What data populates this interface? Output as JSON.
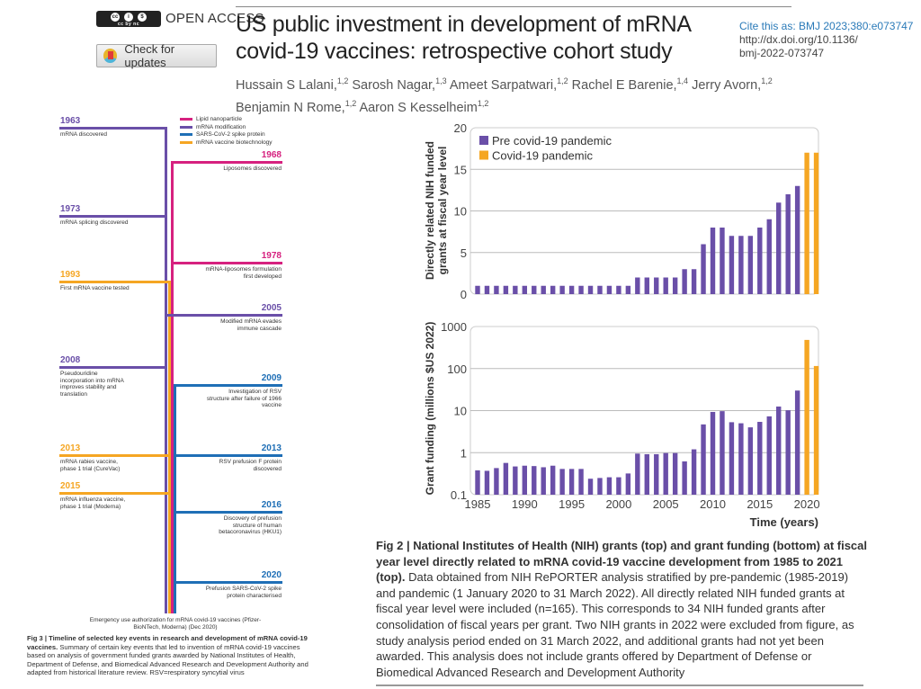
{
  "header": {
    "license_badge": "cc by nc",
    "open_access": "OPEN ACCESS",
    "check_updates": "Check for updates",
    "title": "US public investment in development of mRNA covid-19 vaccines: retrospective cohort study",
    "cite_label": "Cite this as: BMJ 2023;380:e073747",
    "doi_line1": "http://dx.doi.org/10.1136/",
    "doi_line2": "bmj-2022-073747",
    "authors": [
      {
        "name": "Hussain S Lalani,",
        "aff": "1,2"
      },
      {
        "name": "Sarosh Nagar,",
        "aff": "1,3"
      },
      {
        "name": "Ameet Sarpatwari,",
        "aff": "1,2"
      },
      {
        "name": "Rachel E Barenie,",
        "aff": "1,4"
      },
      {
        "name": "Jerry Avorn,",
        "aff": "1,2"
      },
      {
        "name": "Benjamin N Rome,",
        "aff": "1,2"
      },
      {
        "name": "Aaron S Kesselheim",
        "aff": "1,2"
      }
    ]
  },
  "timeline": {
    "colors": {
      "lipid": "#d6217f",
      "mrna": "#6a4fa8",
      "spike": "#1f6fb6",
      "vaccine": "#f5a623"
    },
    "legend": [
      {
        "key": "lipid",
        "label": "Lipid nanoparticle"
      },
      {
        "key": "mrna",
        "label": "mRNA modification"
      },
      {
        "key": "spike",
        "label": "SARS-CoV-2 spike protein"
      },
      {
        "key": "vaccine",
        "label": "mRNA vaccine biotechnology"
      }
    ],
    "events": [
      {
        "year": "1963",
        "side": "left",
        "key": "mrna",
        "text": "mRNA discovered"
      },
      {
        "year": "1968",
        "side": "right",
        "key": "lipid",
        "text": "Liposomes discovered"
      },
      {
        "year": "1973",
        "side": "left",
        "key": "mrna",
        "text": "mRNA splicing discovered"
      },
      {
        "year": "1978",
        "side": "right",
        "key": "lipid",
        "text": "mRNA-liposomes formulation first developed"
      },
      {
        "year": "1993",
        "side": "left",
        "key": "vaccine",
        "text": "First mRNA vaccine tested"
      },
      {
        "year": "2005",
        "side": "right",
        "key": "mrna",
        "text": "Modified mRNA evades immune cascade"
      },
      {
        "year": "2008",
        "side": "left",
        "key": "mrna",
        "text": "Pseudouridine incorporation into mRNA improves stability and translation"
      },
      {
        "year": "2009",
        "side": "right",
        "key": "spike",
        "text": "Investigation of RSV structure after failure of 1966 vaccine"
      },
      {
        "year": "2013",
        "side": "left",
        "key": "vaccine",
        "text": "mRNA rabies vaccine, phase 1 trial (CureVac)"
      },
      {
        "year": "2013",
        "side": "right",
        "key": "spike",
        "text": "RSV prefusion F protein discovered"
      },
      {
        "year": "2015",
        "side": "left",
        "key": "vaccine",
        "text": "mRNA influenza vaccine, phase 1 trial (Moderna)"
      },
      {
        "year": "2016",
        "side": "right",
        "key": "spike",
        "text": "Discovery of prefusion structure of human betacoronavirus (HKU1)"
      },
      {
        "year": "2020",
        "side": "right",
        "key": "spike",
        "text": "Prefusion SARS-CoV-2 spike protein characterised"
      }
    ],
    "end_note": "Emergency use authorization for mRNA covid-19 vaccines (Pfizer-BioNTech, Moderna) (Dec 2020)",
    "caption_label": "Fig 3 | Timeline of selected key events in research and development of mRNA covid-19 vaccines.",
    "caption_text": "Summary of certain key events that led to invention of mRNA covid-19 vaccines based on analysis of government funded grants awarded by National Institutes of Health, Department of Defense, and Biomedical Advanced Research and Development Authority and adapted from historical literature review. RSV=respiratory syncytial virus"
  },
  "chart_data": [
    {
      "type": "bar",
      "x": [
        1985,
        1986,
        1987,
        1988,
        1989,
        1990,
        1991,
        1992,
        1993,
        1994,
        1995,
        1996,
        1997,
        1998,
        1999,
        2000,
        2001,
        2002,
        2003,
        2004,
        2005,
        2006,
        2007,
        2008,
        2009,
        2010,
        2011,
        2012,
        2013,
        2014,
        2015,
        2016,
        2017,
        2018,
        2019,
        2020,
        2021
      ],
      "series": [
        {
          "name": "Pre covid-19 pandemic",
          "color": "#6a4fa8",
          "values": [
            1,
            1,
            1,
            1,
            1,
            1,
            1,
            1,
            1,
            1,
            1,
            1,
            1,
            1,
            1,
            1,
            1,
            2,
            2,
            2,
            2,
            2,
            3,
            3,
            6,
            8,
            8,
            7,
            7,
            7,
            8,
            9,
            11,
            12,
            13,
            null,
            null
          ]
        },
        {
          "name": "Covid-19 pandemic",
          "color": "#f5a623",
          "values": [
            null,
            null,
            null,
            null,
            null,
            null,
            null,
            null,
            null,
            null,
            null,
            null,
            null,
            null,
            null,
            null,
            null,
            null,
            null,
            null,
            null,
            null,
            null,
            null,
            null,
            null,
            null,
            null,
            null,
            null,
            null,
            null,
            null,
            null,
            null,
            17,
            17
          ]
        }
      ],
      "ylabel": [
        "Directly related NIH funded",
        "grants at fiscal year level"
      ],
      "ylim": [
        0,
        20
      ],
      "yticks": [
        "0",
        "5",
        "10",
        "15",
        "20"
      ],
      "grid": true,
      "legend": "top-left"
    },
    {
      "type": "bar",
      "x": [
        1985,
        1986,
        1987,
        1988,
        1989,
        1990,
        1991,
        1992,
        1993,
        1994,
        1995,
        1996,
        1997,
        1998,
        1999,
        2000,
        2001,
        2002,
        2003,
        2004,
        2005,
        2006,
        2007,
        2008,
        2009,
        2010,
        2011,
        2012,
        2013,
        2014,
        2015,
        2016,
        2017,
        2018,
        2019,
        2020,
        2021
      ],
      "series": [
        {
          "name": "Pre covid-19 pandemic",
          "color": "#6a4fa8",
          "values": [
            0.38,
            0.37,
            0.43,
            0.57,
            0.47,
            0.49,
            0.48,
            0.45,
            0.49,
            0.41,
            0.41,
            0.41,
            0.24,
            0.25,
            0.26,
            0.26,
            0.32,
            0.95,
            0.92,
            0.92,
            0.98,
            0.98,
            0.62,
            1.2,
            4.7,
            9.3,
            9.7,
            5.3,
            5.0,
            4.0,
            5.4,
            7.3,
            12.5,
            10.2,
            30,
            null,
            null
          ]
        },
        {
          "name": "Covid-19 pandemic",
          "color": "#f5a623",
          "values": [
            null,
            null,
            null,
            null,
            null,
            null,
            null,
            null,
            null,
            null,
            null,
            null,
            null,
            null,
            null,
            null,
            null,
            null,
            null,
            null,
            null,
            null,
            null,
            null,
            null,
            null,
            null,
            null,
            null,
            null,
            null,
            null,
            null,
            null,
            null,
            480,
            115
          ]
        }
      ],
      "ylabel": "Grant funding (millions $US 2022)",
      "xlabel": "Time (years)",
      "yscale": "log",
      "ylim": [
        0.1,
        1000
      ],
      "yticks": [
        "0.1",
        "1",
        "10",
        "100",
        "1000"
      ],
      "xticks": [
        "1985",
        "1990",
        "1995",
        "2000",
        "2005",
        "2010",
        "2015",
        "2020"
      ],
      "grid": true
    }
  ],
  "fig2_caption": {
    "label": "Fig 2 | National Institutes of Health (NIH) grants (top) and grant funding (bottom) at fiscal year level directly related to mRNA covid-19 vaccine development from 1985 to 2021 (top).",
    "text": "Data obtained from NIH RePORTER analysis stratified by pre-pandemic (1985-2019) and pandemic (1 January 2020 to 31 March 2022). All directly related NIH funded grants at fiscal year level were included (n=165). This corresponds to 34 NIH funded grants after consolidation of fiscal years per grant. Two NIH grants in 2022 were excluded from figure, as study analysis period ended on 31 March 2022, and additional grants had not yet been awarded. This analysis does not include grants offered by Department of Defense or Biomedical Advanced Research and Development Authority"
  }
}
